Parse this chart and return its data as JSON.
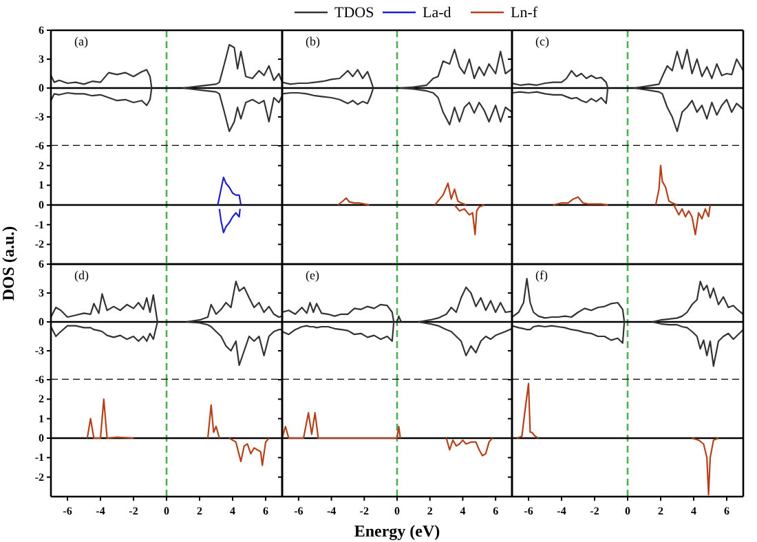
{
  "chart_data": [
    {
      "type": "line",
      "annotations": [
        "(a)"
      ],
      "ylabel": "DOS (a.u.)",
      "legend": "top",
      "xlim": [
        -7,
        7
      ],
      "ylim": [
        -6,
        6
      ],
      "yticks": [
        -6,
        -3,
        0,
        3,
        6
      ],
      "tick_labels": "y",
      "ref_lines": [
        {
          "axis": "x",
          "value": 0,
          "color": "#4caf50",
          "line_style": "dashed"
        },
        {
          "axis": "y",
          "value": 0,
          "color": "#000000"
        },
        {
          "axis": "y",
          "value": -6,
          "color": "#000000",
          "line_style": "dashed"
        }
      ],
      "series": [
        {
          "name": "TDOS",
          "color": "#333333",
          "x": [
            -7,
            -6.8,
            -6.5,
            -6,
            -5.5,
            -5,
            -4.5,
            -4,
            -3.5,
            -3,
            -2.5,
            -2,
            -1.5,
            -1.2,
            -1,
            -0.9,
            0,
            1,
            2,
            3,
            3.2,
            3.5,
            3.8,
            4.1,
            4.3,
            4.5,
            4.8,
            5.2,
            5.6,
            5.9,
            6.2,
            6.5,
            6.8,
            7
          ],
          "values": [
            1.3,
            0.6,
            0.8,
            0.5,
            0.6,
            0.4,
            0.7,
            0.6,
            1.6,
            1.4,
            1.6,
            1.2,
            1.7,
            1.9,
            1.2,
            0,
            null,
            0,
            0.2,
            0.4,
            0.6,
            2.5,
            4.5,
            4.2,
            2.0,
            3.8,
            1.2,
            1.0,
            1.8,
            1.3,
            2.3,
            0.8,
            1.5,
            0.6
          ]
        },
        {
          "color": "#333333",
          "x": [
            -7,
            -6.8,
            -6.5,
            -6,
            -5.5,
            -5,
            -4.5,
            -4,
            -3.5,
            -3,
            -2.5,
            -2,
            -1.5,
            -1.2,
            -1,
            -0.9,
            0,
            1,
            2,
            3,
            3.2,
            3.5,
            3.8,
            4.1,
            4.3,
            4.5,
            4.8,
            5.2,
            5.6,
            5.9,
            6.2,
            6.5,
            6.8,
            7
          ],
          "values": [
            -1.3,
            -0.6,
            -0.7,
            -0.5,
            -0.6,
            -0.6,
            -0.8,
            -0.7,
            -1.0,
            -1.3,
            -1.2,
            -1.5,
            -1.3,
            -1.8,
            -1.2,
            0,
            null,
            0,
            -0.2,
            -0.4,
            -0.6,
            -2.5,
            -4.5,
            -3.5,
            -2.0,
            -3.2,
            -1.5,
            -1.2,
            -1.6,
            -1.3,
            -3.5,
            -1.0,
            -1.5,
            -0.8
          ]
        }
      ]
    },
    {
      "type": "line",
      "legend": "top",
      "xlim": [
        -7,
        7
      ],
      "ylim": [
        -3,
        3
      ],
      "yticks": [
        -2,
        -1,
        0,
        1,
        2
      ],
      "tick_labels": "y",
      "ref_lines": [
        {
          "axis": "x",
          "value": 0,
          "color": "#4caf50",
          "line_style": "dashed"
        },
        {
          "axis": "y",
          "value": 0,
          "color": "#000000"
        }
      ],
      "series": [
        {
          "name": "La-d",
          "color": "#1f1fcc",
          "x": [
            3.1,
            3.3,
            3.45,
            3.6,
            3.8,
            4.0,
            4.2,
            4.4,
            4.5
          ],
          "values": [
            0,
            0.8,
            1.4,
            1.1,
            0.9,
            0.6,
            0.5,
            0.5,
            0
          ]
        },
        {
          "color": "#1f1fcc",
          "x": [
            3.2,
            3.3,
            3.45,
            3.6,
            3.8,
            4.0,
            4.2,
            4.4,
            4.45
          ],
          "values": [
            -0.2,
            -0.8,
            -1.4,
            -1.1,
            -0.9,
            -0.6,
            -0.4,
            -0.6,
            -0.2
          ]
        }
      ]
    },
    {
      "type": "line",
      "annotations": [
        "(b)"
      ],
      "xlim": [
        -7,
        7
      ],
      "ylim": [
        -6,
        6
      ],
      "yticks": [
        -6,
        -3,
        0,
        3,
        6
      ],
      "tick_labels": false,
      "ref_lines": [
        {
          "axis": "x",
          "value": 0,
          "color": "#4caf50",
          "line_style": "dashed"
        },
        {
          "axis": "y",
          "value": 0,
          "color": "#000000"
        },
        {
          "axis": "y",
          "value": -6,
          "color": "#000000",
          "line_style": "dashed"
        }
      ],
      "series": [
        {
          "color": "#333333",
          "x": [
            -7,
            -6.5,
            -6,
            -5.5,
            -5,
            -4.5,
            -4,
            -3.5,
            -3,
            -2.7,
            -2.4,
            -2.1,
            -1.8,
            -1.6,
            -1.45,
            0,
            0.2,
            1,
            1.8,
            2.2,
            2.5,
            2.8,
            3.2,
            3.5,
            3.8,
            4.1,
            4.4,
            4.7,
            5.0,
            5.3,
            5.6,
            6.0,
            6.3,
            6.6,
            7
          ],
          "values": [
            0.6,
            0.4,
            0.5,
            0.5,
            0.6,
            0.7,
            0.9,
            1.0,
            1.8,
            1.2,
            1.9,
            1.0,
            1.7,
            0.8,
            0,
            null,
            0,
            0.1,
            0.3,
            1.0,
            1.2,
            2.8,
            2.5,
            4.0,
            2.2,
            1.5,
            3.0,
            1.0,
            2.2,
            1.3,
            2.5,
            1.5,
            3.8,
            1.5,
            2.0
          ]
        },
        {
          "color": "#333333",
          "x": [
            -7,
            -6.5,
            -6,
            -5.5,
            -5,
            -4.5,
            -4,
            -3.5,
            -3,
            -2.7,
            -2.4,
            -2.1,
            -1.8,
            -1.6,
            -1.45,
            0,
            0.2,
            1,
            1.8,
            2.2,
            2.5,
            2.8,
            3.2,
            3.5,
            3.8,
            4.1,
            4.4,
            4.7,
            5.0,
            5.3,
            5.6,
            6.0,
            6.3,
            6.6,
            7
          ],
          "values": [
            -0.6,
            -0.5,
            -0.5,
            -0.6,
            -0.8,
            -0.9,
            -1.0,
            -1.2,
            -1.6,
            -1.3,
            -1.7,
            -1.4,
            -1.6,
            -0.8,
            0,
            null,
            0,
            -0.1,
            -0.3,
            -0.5,
            -1.0,
            -2.5,
            -3.8,
            -2.0,
            -3.5,
            -2.0,
            -1.5,
            -2.6,
            -1.5,
            -2.3,
            -3.5,
            -1.8,
            -3.5,
            -2.0,
            -2.5
          ]
        }
      ]
    },
    {
      "type": "line",
      "legend": "top",
      "xlim": [
        -7,
        7
      ],
      "ylim": [
        -3,
        3
      ],
      "yticks": [
        -2,
        -1,
        0,
        1,
        2
      ],
      "tick_labels": false,
      "ref_lines": [
        {
          "axis": "x",
          "value": 0,
          "color": "#4caf50",
          "line_style": "dashed"
        },
        {
          "axis": "y",
          "value": 0,
          "color": "#000000"
        }
      ],
      "series": [
        {
          "name": "Ln-f",
          "color": "#b3401a",
          "x": [
            -3.6,
            -3.3,
            -3.1,
            -2.9,
            -2.6,
            -2.3,
            -2.0,
            -1.7,
            0,
            2.3,
            2.6,
            2.8,
            3.1,
            3.3,
            3.5,
            3.7,
            3.9,
            4.2
          ],
          "values": [
            0,
            0.2,
            0.35,
            0.15,
            0.1,
            0.1,
            0.05,
            0,
            null,
            0,
            0.3,
            0.5,
            1.1,
            0.3,
            0.8,
            0.2,
            0.1,
            0
          ]
        },
        {
          "color": "#b3401a",
          "x": [
            3.5,
            3.8,
            4.1,
            4.4,
            4.6,
            4.75,
            4.85,
            5.0,
            5.3
          ],
          "values": [
            0,
            -0.3,
            -0.2,
            -0.5,
            -0.4,
            -1.5,
            -0.3,
            -0.1,
            0
          ]
        }
      ]
    },
    {
      "type": "line",
      "annotations": [
        "(c)"
      ],
      "xlim": [
        -7,
        7
      ],
      "ylim": [
        -6,
        6
      ],
      "yticks": [
        -6,
        -3,
        0,
        3,
        6
      ],
      "tick_labels": false,
      "ref_lines": [
        {
          "axis": "x",
          "value": 0,
          "color": "#4caf50",
          "line_style": "dashed"
        },
        {
          "axis": "y",
          "value": 0,
          "color": "#000000"
        },
        {
          "axis": "y",
          "value": -6,
          "color": "#000000",
          "line_style": "dashed"
        }
      ],
      "series": [
        {
          "color": "#333333",
          "x": [
            -7,
            -6.5,
            -6,
            -5.5,
            -5,
            -4.5,
            -4,
            -3.7,
            -3.4,
            -3.1,
            -2.8,
            -2.5,
            -2.2,
            -1.9,
            -1.6,
            -1.3,
            -1.2,
            0,
            0.4,
            1.2,
            1.9,
            2.1,
            2.4,
            2.7,
            3.0,
            3.3,
            3.6,
            3.9,
            4.2,
            4.5,
            4.8,
            5.1,
            5.4,
            5.7,
            6.0,
            6.3,
            6.6,
            7
          ],
          "values": [
            0.5,
            0.3,
            0.4,
            0.3,
            0.5,
            0.6,
            0.6,
            1.0,
            1.8,
            1.2,
            1.5,
            1.0,
            1.3,
            1.0,
            1.1,
            0.6,
            0,
            null,
            0,
            0.2,
            0.4,
            1.2,
            2.3,
            1.8,
            3.8,
            2.0,
            4.0,
            1.5,
            3.0,
            1.2,
            2.2,
            1.0,
            2.5,
            1.3,
            1.5,
            1.4,
            3.0,
            1.8
          ]
        },
        {
          "color": "#333333",
          "x": [
            -7,
            -6.5,
            -6,
            -5.5,
            -5,
            -4.5,
            -4,
            -3.7,
            -3.4,
            -3.1,
            -2.8,
            -2.5,
            -2.2,
            -1.9,
            -1.6,
            -1.3,
            -1.2,
            0,
            0.4,
            1.2,
            1.9,
            2.1,
            2.4,
            2.7,
            3.0,
            3.3,
            3.6,
            3.9,
            4.2,
            4.5,
            4.8,
            5.1,
            5.4,
            5.7,
            6.0,
            6.3,
            6.6,
            7
          ],
          "values": [
            -0.5,
            -0.4,
            -0.5,
            -0.4,
            -0.6,
            -0.7,
            -0.7,
            -0.9,
            -1.1,
            -1.0,
            -1.3,
            -1.5,
            -1.1,
            -1.4,
            -1.0,
            -1.6,
            0,
            null,
            0,
            -0.2,
            -0.4,
            -0.6,
            -2.0,
            -3.0,
            -4.5,
            -2.5,
            -2.0,
            -1.3,
            -2.5,
            -1.8,
            -3.2,
            -1.5,
            -2.8,
            -1.8,
            -1.2,
            -2.5,
            -1.6,
            -2.2
          ]
        }
      ]
    },
    {
      "type": "line",
      "xlim": [
        -7,
        7
      ],
      "ylim": [
        -3,
        3
      ],
      "yticks": [
        -2,
        -1,
        0,
        1,
        2
      ],
      "tick_labels": false,
      "ref_lines": [
        {
          "axis": "x",
          "value": 0,
          "color": "#4caf50",
          "line_style": "dashed"
        },
        {
          "axis": "y",
          "value": 0,
          "color": "#000000"
        }
      ],
      "series": [
        {
          "color": "#b3401a",
          "x": [
            -4.5,
            -4.0,
            -3.6,
            -3.3,
            -3.0,
            -2.7,
            -2.4,
            -1.6,
            -1.2,
            0,
            1.7,
            1.9,
            2.0,
            2.1,
            2.3,
            2.5,
            2.7,
            3.0
          ],
          "values": [
            0,
            0.1,
            0.1,
            0.3,
            0.4,
            0.1,
            0.05,
            0.05,
            0,
            null,
            0,
            0.8,
            2.0,
            1.2,
            0.9,
            0.2,
            0.1,
            0
          ]
        },
        {
          "color": "#b3401a",
          "x": [
            2.8,
            3.1,
            3.3,
            3.5,
            3.7,
            3.9,
            4.1,
            4.3,
            4.5,
            4.7,
            4.9,
            5.0
          ],
          "values": [
            0,
            -0.5,
            -0.2,
            -0.6,
            -0.3,
            -0.6,
            -1.5,
            -0.4,
            -0.7,
            -0.2,
            -0.6,
            0
          ]
        }
      ]
    },
    {
      "type": "line",
      "annotations": [
        "(d)"
      ],
      "xlim": [
        -7,
        7
      ],
      "ylim": [
        -6,
        6
      ],
      "yticks": [
        -6,
        -3,
        0,
        3,
        6
      ],
      "tick_labels": "y",
      "ref_lines": [
        {
          "axis": "x",
          "value": 0,
          "color": "#4caf50",
          "line_style": "dashed"
        },
        {
          "axis": "y",
          "value": 0,
          "color": "#000000"
        },
        {
          "axis": "y",
          "value": -6,
          "color": "#000000",
          "line_style": "dashed"
        }
      ],
      "series": [
        {
          "color": "#333333",
          "x": [
            -7,
            -6.7,
            -6.4,
            -6.0,
            -5.5,
            -5.0,
            -4.6,
            -4.4,
            -4.1,
            -3.9,
            -3.6,
            -3.2,
            -2.8,
            -2.4,
            -2.0,
            -1.7,
            -1.4,
            -1.2,
            -1.0,
            -0.8,
            -0.55,
            0,
            1.2,
            2.0,
            2.5,
            2.7,
            3.0,
            3.3,
            3.6,
            3.9,
            4.2,
            4.4,
            4.7,
            5.0,
            5.3,
            5.6,
            5.9,
            6.2,
            6.5,
            6.8,
            7
          ],
          "values": [
            0.5,
            1.5,
            1.2,
            0.5,
            0.7,
            0.9,
            0.8,
            1.9,
            0.9,
            2.9,
            1.2,
            1.6,
            1.2,
            1.8,
            1.4,
            2.0,
            1.3,
            2.5,
            1.0,
            2.8,
            0,
            null,
            0,
            0.2,
            0.5,
            1.8,
            0.8,
            1.3,
            2.0,
            1.5,
            4.2,
            3.2,
            3.6,
            2.5,
            1.5,
            2.0,
            1.0,
            1.6,
            0.8,
            0.5,
            0.6
          ]
        },
        {
          "color": "#333333",
          "x": [
            -7,
            -6.7,
            -6.4,
            -6.0,
            -5.5,
            -5.0,
            -4.6,
            -4.4,
            -4.1,
            -3.9,
            -3.6,
            -3.2,
            -2.8,
            -2.4,
            -2.0,
            -1.7,
            -1.4,
            -1.2,
            -1.0,
            -0.8,
            -0.55,
            0,
            1.2,
            2.0,
            2.5,
            2.7,
            3.0,
            3.3,
            3.6,
            3.9,
            4.2,
            4.4,
            4.7,
            5.0,
            5.3,
            5.6,
            5.9,
            6.2,
            6.5,
            6.8,
            7
          ],
          "values": [
            -0.5,
            -1.5,
            -1.0,
            -0.4,
            -0.4,
            -0.6,
            -0.6,
            -0.8,
            -0.9,
            -1.0,
            -1.4,
            -1.6,
            -1.4,
            -1.8,
            -1.5,
            -2.0,
            -1.5,
            -2.0,
            -1.2,
            -1.8,
            0,
            null,
            0,
            -0.1,
            -0.3,
            -0.5,
            -1.0,
            -1.5,
            -2.5,
            -3.0,
            -2.0,
            -4.5,
            -3.0,
            -1.5,
            -2.0,
            -1.5,
            -3.5,
            -1.5,
            -1.0,
            -0.8,
            -0.8
          ]
        }
      ]
    },
    {
      "type": "line",
      "xlim": [
        -7,
        7
      ],
      "ylim": [
        -3,
        3
      ],
      "xticks": [
        -6,
        -4,
        -2,
        0,
        2,
        4,
        6
      ],
      "yticks": [
        -2,
        -1,
        0,
        1,
        2
      ],
      "ref_lines": [
        {
          "axis": "x",
          "value": 0,
          "color": "#4caf50",
          "line_style": "dashed"
        },
        {
          "axis": "y",
          "value": 0,
          "color": "#000000"
        }
      ],
      "series": [
        {
          "color": "#b3401a",
          "x": [
            -4.8,
            -4.6,
            -4.4,
            -4.0,
            -3.8,
            -3.6,
            -3.0,
            -2.0,
            0,
            2.5,
            2.7,
            2.85,
            3.0,
            3.2
          ],
          "values": [
            0,
            1.0,
            0,
            0,
            2.0,
            0,
            0.05,
            0,
            null,
            0,
            1.7,
            0.3,
            0.6,
            0
          ]
        },
        {
          "color": "#b3401a",
          "x": [
            3.8,
            4.2,
            4.5,
            4.7,
            4.9,
            5.1,
            5.3,
            5.5,
            5.7,
            5.8,
            6.0,
            6.2
          ],
          "values": [
            0,
            -0.2,
            -1.2,
            -0.4,
            -0.3,
            -0.8,
            -0.5,
            -0.6,
            -0.7,
            -1.4,
            -0.2,
            0
          ]
        }
      ]
    },
    {
      "type": "line",
      "annotations": [
        "(e)"
      ],
      "xlim": [
        -7,
        7
      ],
      "ylim": [
        -6,
        6
      ],
      "yticks": [
        -6,
        -3,
        0,
        3,
        6
      ],
      "tick_labels": false,
      "ref_lines": [
        {
          "axis": "x",
          "value": 0,
          "color": "#4caf50",
          "line_style": "dashed"
        },
        {
          "axis": "y",
          "value": 0,
          "color": "#000000"
        },
        {
          "axis": "y",
          "value": -6,
          "color": "#000000",
          "line_style": "dashed"
        }
      ],
      "series": [
        {
          "color": "#333333",
          "x": [
            -7,
            -6.6,
            -6.2,
            -5.8,
            -5.5,
            -5.3,
            -5.1,
            -4.9,
            -4.6,
            -4.2,
            -3.8,
            -3.4,
            -3.0,
            -2.6,
            -2.2,
            -1.8,
            -1.4,
            -1.0,
            -0.6,
            -0.3,
            -0.2,
            -0.1,
            0,
            0.1,
            0.25,
            0.8,
            1.3,
            2.0,
            2.5,
            3.0,
            3.3,
            3.6,
            3.9,
            4.2,
            4.5,
            4.8,
            5.1,
            5.4,
            5.7,
            6.0,
            6.3,
            6.6,
            7
          ],
          "values": [
            1.0,
            1.2,
            0.8,
            1.5,
            0.9,
            2.0,
            1.0,
            1.9,
            0.9,
            0.8,
            0.6,
            0.8,
            0.8,
            1.4,
            1.3,
            1.6,
            1.4,
            1.8,
            1.7,
            1.0,
            0,
            null,
            0,
            0.6,
            0,
            null,
            0,
            0.2,
            0.4,
            0.8,
            1.5,
            1.0,
            2.5,
            3.6,
            3.0,
            1.6,
            2.5,
            1.2,
            2.2,
            1.0,
            2.0,
            1.0,
            1.1
          ]
        },
        {
          "color": "#333333",
          "x": [
            -7,
            -6.6,
            -6.2,
            -5.8,
            -5.5,
            -5.3,
            -5.1,
            -4.9,
            -4.6,
            -4.2,
            -3.8,
            -3.4,
            -3.0,
            -2.6,
            -2.2,
            -1.8,
            -1.4,
            -1.0,
            -0.6,
            -0.3,
            -0.2,
            0,
            1.3,
            2.0,
            2.5,
            3.0,
            3.3,
            3.6,
            3.9,
            4.2,
            4.5,
            4.8,
            5.1,
            5.4,
            5.7,
            6.0,
            6.3,
            6.6,
            7
          ],
          "values": [
            -1.0,
            -1.3,
            -0.8,
            -0.5,
            -0.4,
            -0.5,
            -0.5,
            -0.6,
            -0.5,
            -0.5,
            -0.7,
            -0.8,
            -0.9,
            -1.3,
            -1.2,
            -1.6,
            -1.4,
            -1.8,
            -1.5,
            -2.0,
            0,
            null,
            0,
            -0.2,
            -0.4,
            -0.8,
            -1.0,
            -1.5,
            -2.0,
            -3.5,
            -2.5,
            -3.2,
            -2.0,
            -1.5,
            -1.8,
            -1.4,
            -1.2,
            -1.0,
            -0.7
          ]
        }
      ]
    },
    {
      "type": "line",
      "xlabel": "Energy (eV)",
      "xlim": [
        -7,
        7
      ],
      "ylim": [
        -3,
        3
      ],
      "xticks": [
        -6,
        -4,
        -2,
        0,
        2,
        4,
        6
      ],
      "yticks": [
        -2,
        -1,
        0,
        1,
        2
      ],
      "tick_labels": "x",
      "ref_lines": [
        {
          "axis": "x",
          "value": 0,
          "color": "#4caf50",
          "line_style": "dashed"
        },
        {
          "axis": "y",
          "value": 0,
          "color": "#000000"
        }
      ],
      "series": [
        {
          "color": "#b3401a",
          "x": [
            -7,
            -6.8,
            -6.6,
            -5.7,
            -5.4,
            -5.2,
            -5.0,
            -4.8,
            -4.5,
            0,
            0.1,
            0.2
          ],
          "values": [
            0,
            0.6,
            0,
            0,
            1.3,
            0.2,
            1.3,
            0,
            0,
            0,
            0.6,
            0
          ]
        },
        {
          "color": "#b3401a",
          "x": [
            3.0,
            3.2,
            3.4,
            3.6,
            3.8,
            4.0,
            4.2,
            4.5,
            4.8,
            5.0,
            5.2,
            5.4,
            5.6,
            5.8
          ],
          "values": [
            0,
            -0.6,
            -0.1,
            -0.4,
            -0.3,
            -0.1,
            -0.3,
            -0.2,
            -0.2,
            -0.6,
            -0.9,
            -0.8,
            -0.2,
            0
          ]
        }
      ]
    },
    {
      "type": "line",
      "annotations": [
        "(f)"
      ],
      "xlim": [
        -7,
        7
      ],
      "ylim": [
        -6,
        6
      ],
      "yticks": [
        -6,
        -3,
        0,
        3,
        6
      ],
      "tick_labels": false,
      "ref_lines": [
        {
          "axis": "x",
          "value": 0,
          "color": "#4caf50",
          "line_style": "dashed"
        },
        {
          "axis": "y",
          "value": 0,
          "color": "#000000"
        },
        {
          "axis": "y",
          "value": -6,
          "color": "#000000",
          "line_style": "dashed"
        }
      ],
      "series": [
        {
          "color": "#333333",
          "x": [
            -7,
            -6.6,
            -6.3,
            -6.1,
            -5.9,
            -5.7,
            -5.4,
            -5.0,
            -4.6,
            -4.2,
            -3.8,
            -3.4,
            -3.0,
            -2.6,
            -2.2,
            -1.8,
            -1.4,
            -1.0,
            -0.6,
            -0.3,
            -0.2,
            0,
            1.5,
            2.0,
            2.5,
            3.0,
            3.3,
            3.6,
            3.9,
            4.2,
            4.4,
            4.6,
            4.8,
            5.0,
            5.2,
            5.5,
            5.8,
            6.1,
            6.4,
            6.7,
            7
          ],
          "values": [
            0.5,
            1.0,
            2.0,
            4.5,
            2.0,
            1.0,
            0.6,
            0.4,
            0.5,
            0.5,
            0.6,
            0.5,
            1.0,
            1.4,
            1.2,
            1.5,
            1.6,
            1.9,
            2.0,
            1.3,
            0,
            null,
            0,
            0.2,
            0.3,
            0.4,
            0.6,
            1.0,
            1.8,
            2.3,
            4.2,
            3.3,
            3.8,
            2.5,
            3.5,
            1.8,
            2.6,
            1.5,
            1.7,
            1.2,
            0.8
          ]
        },
        {
          "color": "#333333",
          "x": [
            -7,
            -6.6,
            -6.3,
            -6.1,
            -5.9,
            -5.7,
            -5.4,
            -5.0,
            -4.6,
            -4.2,
            -3.8,
            -3.4,
            -3.0,
            -2.6,
            -2.2,
            -1.8,
            -1.4,
            -1.0,
            -0.6,
            -0.3,
            -0.2,
            0,
            1.5,
            2.0,
            2.5,
            3.0,
            3.3,
            3.6,
            3.9,
            4.2,
            4.4,
            4.6,
            4.8,
            5.0,
            5.2,
            5.5,
            5.8,
            6.1,
            6.4,
            6.7,
            7
          ],
          "values": [
            -0.4,
            -0.6,
            -0.7,
            -0.8,
            -0.8,
            -0.5,
            -0.4,
            -0.5,
            -0.4,
            -0.5,
            -0.6,
            -0.8,
            -0.9,
            -1.1,
            -1.2,
            -1.5,
            -1.5,
            -1.9,
            -1.7,
            -2.2,
            0,
            null,
            0,
            -0.2,
            -0.3,
            -0.3,
            -0.5,
            -0.6,
            -1.0,
            -1.5,
            -2.8,
            -1.9,
            -3.5,
            -2.0,
            -4.6,
            -2.0,
            -1.5,
            -1.2,
            -1.8,
            -1.3,
            -0.8
          ]
        }
      ]
    },
    {
      "type": "line",
      "xlim": [
        -7,
        7
      ],
      "ylim": [
        -3,
        3
      ],
      "xticks": [
        -6,
        -4,
        -2,
        0,
        2,
        4,
        6
      ],
      "yticks": [
        -2,
        -1,
        0,
        1,
        2
      ],
      "tick_labels": "x",
      "ref_lines": [
        {
          "axis": "x",
          "value": 0,
          "color": "#4caf50",
          "line_style": "dashed"
        },
        {
          "axis": "y",
          "value": 0,
          "color": "#000000"
        }
      ],
      "series": [
        {
          "color": "#b3401a",
          "x": [
            -6.7,
            -6.4,
            -6.2,
            -6.0,
            -5.9,
            -5.8,
            -5.6,
            -5.4
          ],
          "values": [
            0,
            0.1,
            1.5,
            2.8,
            0.3,
            0.3,
            0.1,
            0
          ]
        },
        {
          "color": "#b3401a",
          "x": [
            3.9,
            4.3,
            4.6,
            4.8,
            4.9,
            5.0,
            5.2,
            5.5
          ],
          "values": [
            0,
            -0.1,
            -0.3,
            -1.0,
            -2.9,
            -1.0,
            -0.1,
            0
          ]
        }
      ]
    }
  ]
}
